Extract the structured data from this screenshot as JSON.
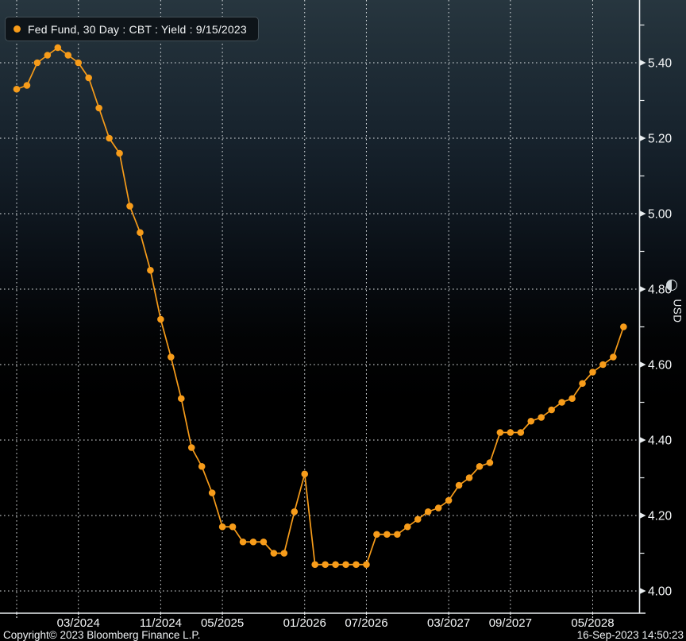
{
  "legend": {
    "label": "Fed Fund, 30 Day : CBT : Yield : 9/15/2023",
    "marker_color": "#f79c1a"
  },
  "footer": {
    "copyright": "Copyright© 2023 Bloomberg Finance L.P.",
    "timestamp": "16-Sep-2023 14:50:23"
  },
  "colors": {
    "series": "#f79c1a",
    "grid": "#e9edef",
    "axis": "#e9edef",
    "text": "#f4f6f7"
  },
  "chart_data": {
    "type": "line",
    "title": "Fed Fund, 30 Day : CBT : Yield : 9/15/2023",
    "ylabel": "USD",
    "ylim": [
      3.94,
      5.56
    ],
    "grid": "dotted, both axes",
    "legend_position": "top-left",
    "marker": "circle",
    "x": [
      "09/2023",
      "10/2023",
      "11/2023",
      "12/2023",
      "01/2024",
      "02/2024",
      "03/2024",
      "04/2024",
      "05/2024",
      "06/2024",
      "07/2024",
      "08/2024",
      "09/2024",
      "10/2024",
      "11/2024",
      "12/2024",
      "01/2025",
      "02/2025",
      "03/2025",
      "04/2025",
      "05/2025",
      "06/2025",
      "07/2025",
      "08/2025",
      "09/2025",
      "10/2025",
      "11/2025",
      "12/2025",
      "01/2026",
      "02/2026",
      "03/2026",
      "04/2026",
      "05/2026",
      "06/2026",
      "07/2026",
      "08/2026",
      "09/2026",
      "10/2026",
      "11/2026",
      "12/2026",
      "01/2027",
      "02/2027",
      "03/2027",
      "04/2027",
      "05/2027",
      "06/2027",
      "07/2027",
      "08/2027",
      "09/2027",
      "10/2027",
      "11/2027",
      "12/2027",
      "01/2028",
      "02/2028",
      "03/2028",
      "04/2028",
      "05/2028",
      "06/2028",
      "07/2028",
      "08/2028"
    ],
    "values": [
      5.33,
      5.34,
      5.4,
      5.42,
      5.44,
      5.42,
      5.4,
      5.36,
      5.28,
      5.2,
      5.16,
      5.02,
      4.95,
      4.85,
      4.72,
      4.62,
      4.51,
      4.38,
      4.33,
      4.26,
      4.17,
      4.17,
      4.13,
      4.13,
      4.13,
      4.1,
      4.1,
      4.21,
      4.31,
      4.07,
      4.07,
      4.07,
      4.07,
      4.07,
      4.07,
      4.15,
      4.15,
      4.15,
      4.17,
      4.19,
      4.21,
      4.22,
      4.24,
      4.28,
      4.3,
      4.33,
      4.34,
      4.42,
      4.42,
      4.42,
      4.45,
      4.46,
      4.48,
      4.5,
      4.51,
      4.55,
      4.58,
      4.6,
      4.62,
      4.7
    ],
    "y_ticks": [
      {
        "value": 5.4,
        "label": "5.40"
      },
      {
        "value": 5.2,
        "label": "5.20"
      },
      {
        "value": 5.0,
        "label": "5.00"
      },
      {
        "value": 4.8,
        "label": "4.80"
      },
      {
        "value": 4.6,
        "label": "4.60"
      },
      {
        "value": 4.4,
        "label": "4.40"
      },
      {
        "value": 4.2,
        "label": "4.20"
      },
      {
        "value": 4.0,
        "label": "4.00"
      }
    ],
    "x_ticks": [
      {
        "label": "",
        "month_index": 0
      },
      {
        "label": "03/2024",
        "month_index": 6
      },
      {
        "label": "11/2024",
        "month_index": 14
      },
      {
        "label": "05/2025",
        "month_index": 20
      },
      {
        "label": "01/2026",
        "month_index": 28
      },
      {
        "label": "07/2026",
        "month_index": 34
      },
      {
        "label": "03/2027",
        "month_index": 42
      },
      {
        "label": "09/2027",
        "month_index": 48
      },
      {
        "label": "05/2028",
        "month_index": 56
      }
    ]
  }
}
